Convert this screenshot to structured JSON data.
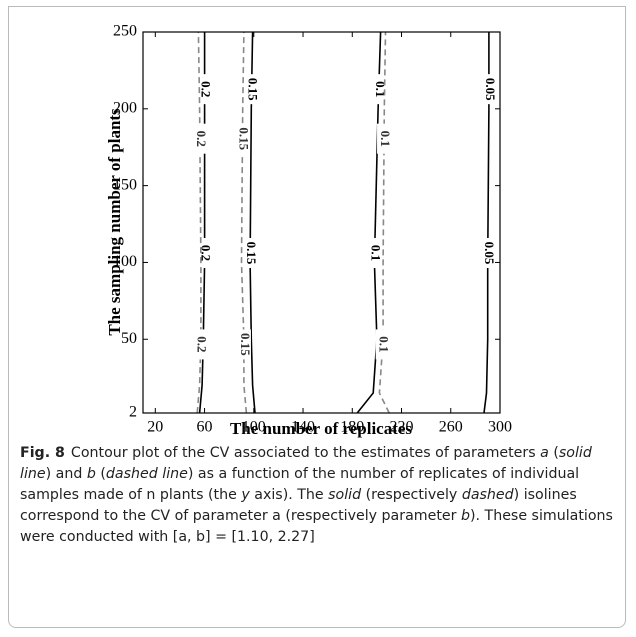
{
  "chart_data": {
    "type": "contour",
    "xlabel": "The number of replicates",
    "ylabel": "The sampling number of plants",
    "xlim": [
      10,
      300
    ],
    "xticks": [
      20,
      60,
      100,
      140,
      180,
      220,
      260,
      300
    ],
    "ylim": [
      2,
      250
    ],
    "yticks": [
      2,
      50,
      100,
      150,
      200,
      250
    ],
    "contours": [
      {
        "level": 0.2,
        "style": "solid",
        "color": "#000000",
        "x": [
          56,
          58,
          59,
          60,
          60,
          60
        ],
        "y": [
          2,
          20,
          50,
          100,
          200,
          250
        ]
      },
      {
        "level": 0.2,
        "style": "dashed",
        "color": "#888888",
        "x": [
          54,
          56,
          57,
          57,
          56,
          55
        ],
        "y": [
          2,
          20,
          50,
          100,
          200,
          250
        ]
      },
      {
        "level": 0.15,
        "style": "solid",
        "color": "#000000",
        "x": [
          101,
          99,
          98,
          97,
          98,
          99
        ],
        "y": [
          2,
          20,
          50,
          100,
          200,
          250
        ]
      },
      {
        "level": 0.15,
        "style": "dashed",
        "color": "#888888",
        "x": [
          94,
          92,
          92,
          90,
          91,
          92
        ],
        "y": [
          2,
          20,
          50,
          100,
          200,
          250
        ]
      },
      {
        "level": 0.1,
        "style": "solid",
        "color": "#000000",
        "x": [
          184,
          197,
          200,
          198,
          201,
          203
        ],
        "y": [
          2,
          15,
          50,
          100,
          200,
          250
        ]
      },
      {
        "level": 0.1,
        "style": "dashed",
        "color": "#888888",
        "x": [
          210,
          202,
          205,
          205,
          206,
          207
        ],
        "y": [
          2,
          15,
          50,
          100,
          200,
          250
        ]
      },
      {
        "level": 0.05,
        "style": "solid",
        "color": "#000000",
        "x": [
          287,
          289,
          290,
          290,
          291,
          291
        ],
        "y": [
          2,
          15,
          50,
          100,
          200,
          250
        ]
      }
    ]
  },
  "caption": {
    "label": "Fig. 8",
    "parts": [
      "Contour plot of the CV associated to the estimates of parameters ",
      "a",
      " (",
      "solid line",
      ") and ",
      "b",
      " (",
      "dashed line",
      ") as a function of the number of replicates of individual samples made of n plants (the ",
      "y",
      " axis). The ",
      "solid",
      " (respectively ",
      "dashed",
      ") isolines correspond to the CV of parameter a (respectively parameter ",
      "b",
      "). These simulations were conducted with [a, b] = [1.10, 2.27]"
    ]
  }
}
